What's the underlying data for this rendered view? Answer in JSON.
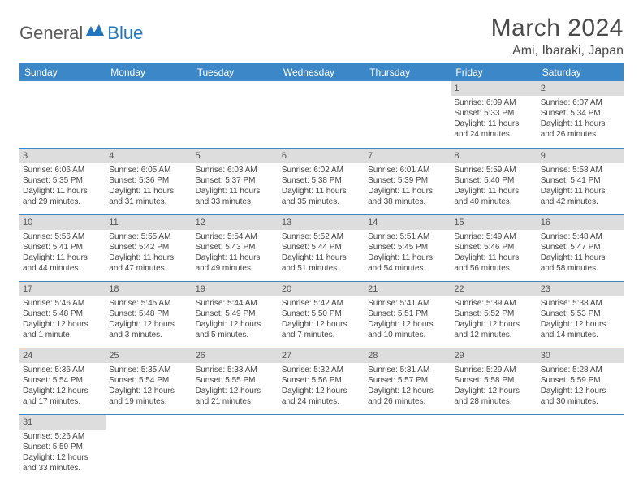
{
  "logo": {
    "text1": "General",
    "text2": "Blue"
  },
  "title": {
    "month": "March 2024",
    "location": "Ami, Ibaraki, Japan"
  },
  "colors": {
    "header_bg": "#3b87c8",
    "daynum_bg": "#dddddd",
    "row_border": "#3b87c8",
    "logo_blue": "#2176bb"
  },
  "day_headers": [
    "Sunday",
    "Monday",
    "Tuesday",
    "Wednesday",
    "Thursday",
    "Friday",
    "Saturday"
  ],
  "weeks": [
    [
      null,
      null,
      null,
      null,
      null,
      {
        "n": "1",
        "sr": "Sunrise: 6:09 AM",
        "ss": "Sunset: 5:33 PM",
        "d1": "Daylight: 11 hours",
        "d2": "and 24 minutes."
      },
      {
        "n": "2",
        "sr": "Sunrise: 6:07 AM",
        "ss": "Sunset: 5:34 PM",
        "d1": "Daylight: 11 hours",
        "d2": "and 26 minutes."
      }
    ],
    [
      {
        "n": "3",
        "sr": "Sunrise: 6:06 AM",
        "ss": "Sunset: 5:35 PM",
        "d1": "Daylight: 11 hours",
        "d2": "and 29 minutes."
      },
      {
        "n": "4",
        "sr": "Sunrise: 6:05 AM",
        "ss": "Sunset: 5:36 PM",
        "d1": "Daylight: 11 hours",
        "d2": "and 31 minutes."
      },
      {
        "n": "5",
        "sr": "Sunrise: 6:03 AM",
        "ss": "Sunset: 5:37 PM",
        "d1": "Daylight: 11 hours",
        "d2": "and 33 minutes."
      },
      {
        "n": "6",
        "sr": "Sunrise: 6:02 AM",
        "ss": "Sunset: 5:38 PM",
        "d1": "Daylight: 11 hours",
        "d2": "and 35 minutes."
      },
      {
        "n": "7",
        "sr": "Sunrise: 6:01 AM",
        "ss": "Sunset: 5:39 PM",
        "d1": "Daylight: 11 hours",
        "d2": "and 38 minutes."
      },
      {
        "n": "8",
        "sr": "Sunrise: 5:59 AM",
        "ss": "Sunset: 5:40 PM",
        "d1": "Daylight: 11 hours",
        "d2": "and 40 minutes."
      },
      {
        "n": "9",
        "sr": "Sunrise: 5:58 AM",
        "ss": "Sunset: 5:41 PM",
        "d1": "Daylight: 11 hours",
        "d2": "and 42 minutes."
      }
    ],
    [
      {
        "n": "10",
        "sr": "Sunrise: 5:56 AM",
        "ss": "Sunset: 5:41 PM",
        "d1": "Daylight: 11 hours",
        "d2": "and 44 minutes."
      },
      {
        "n": "11",
        "sr": "Sunrise: 5:55 AM",
        "ss": "Sunset: 5:42 PM",
        "d1": "Daylight: 11 hours",
        "d2": "and 47 minutes."
      },
      {
        "n": "12",
        "sr": "Sunrise: 5:54 AM",
        "ss": "Sunset: 5:43 PM",
        "d1": "Daylight: 11 hours",
        "d2": "and 49 minutes."
      },
      {
        "n": "13",
        "sr": "Sunrise: 5:52 AM",
        "ss": "Sunset: 5:44 PM",
        "d1": "Daylight: 11 hours",
        "d2": "and 51 minutes."
      },
      {
        "n": "14",
        "sr": "Sunrise: 5:51 AM",
        "ss": "Sunset: 5:45 PM",
        "d1": "Daylight: 11 hours",
        "d2": "and 54 minutes."
      },
      {
        "n": "15",
        "sr": "Sunrise: 5:49 AM",
        "ss": "Sunset: 5:46 PM",
        "d1": "Daylight: 11 hours",
        "d2": "and 56 minutes."
      },
      {
        "n": "16",
        "sr": "Sunrise: 5:48 AM",
        "ss": "Sunset: 5:47 PM",
        "d1": "Daylight: 11 hours",
        "d2": "and 58 minutes."
      }
    ],
    [
      {
        "n": "17",
        "sr": "Sunrise: 5:46 AM",
        "ss": "Sunset: 5:48 PM",
        "d1": "Daylight: 12 hours",
        "d2": "and 1 minute."
      },
      {
        "n": "18",
        "sr": "Sunrise: 5:45 AM",
        "ss": "Sunset: 5:48 PM",
        "d1": "Daylight: 12 hours",
        "d2": "and 3 minutes."
      },
      {
        "n": "19",
        "sr": "Sunrise: 5:44 AM",
        "ss": "Sunset: 5:49 PM",
        "d1": "Daylight: 12 hours",
        "d2": "and 5 minutes."
      },
      {
        "n": "20",
        "sr": "Sunrise: 5:42 AM",
        "ss": "Sunset: 5:50 PM",
        "d1": "Daylight: 12 hours",
        "d2": "and 7 minutes."
      },
      {
        "n": "21",
        "sr": "Sunrise: 5:41 AM",
        "ss": "Sunset: 5:51 PM",
        "d1": "Daylight: 12 hours",
        "d2": "and 10 minutes."
      },
      {
        "n": "22",
        "sr": "Sunrise: 5:39 AM",
        "ss": "Sunset: 5:52 PM",
        "d1": "Daylight: 12 hours",
        "d2": "and 12 minutes."
      },
      {
        "n": "23",
        "sr": "Sunrise: 5:38 AM",
        "ss": "Sunset: 5:53 PM",
        "d1": "Daylight: 12 hours",
        "d2": "and 14 minutes."
      }
    ],
    [
      {
        "n": "24",
        "sr": "Sunrise: 5:36 AM",
        "ss": "Sunset: 5:54 PM",
        "d1": "Daylight: 12 hours",
        "d2": "and 17 minutes."
      },
      {
        "n": "25",
        "sr": "Sunrise: 5:35 AM",
        "ss": "Sunset: 5:54 PM",
        "d1": "Daylight: 12 hours",
        "d2": "and 19 minutes."
      },
      {
        "n": "26",
        "sr": "Sunrise: 5:33 AM",
        "ss": "Sunset: 5:55 PM",
        "d1": "Daylight: 12 hours",
        "d2": "and 21 minutes."
      },
      {
        "n": "27",
        "sr": "Sunrise: 5:32 AM",
        "ss": "Sunset: 5:56 PM",
        "d1": "Daylight: 12 hours",
        "d2": "and 24 minutes."
      },
      {
        "n": "28",
        "sr": "Sunrise: 5:31 AM",
        "ss": "Sunset: 5:57 PM",
        "d1": "Daylight: 12 hours",
        "d2": "and 26 minutes."
      },
      {
        "n": "29",
        "sr": "Sunrise: 5:29 AM",
        "ss": "Sunset: 5:58 PM",
        "d1": "Daylight: 12 hours",
        "d2": "and 28 minutes."
      },
      {
        "n": "30",
        "sr": "Sunrise: 5:28 AM",
        "ss": "Sunset: 5:59 PM",
        "d1": "Daylight: 12 hours",
        "d2": "and 30 minutes."
      }
    ],
    [
      {
        "n": "31",
        "sr": "Sunrise: 5:26 AM",
        "ss": "Sunset: 5:59 PM",
        "d1": "Daylight: 12 hours",
        "d2": "and 33 minutes."
      },
      null,
      null,
      null,
      null,
      null,
      null
    ]
  ]
}
